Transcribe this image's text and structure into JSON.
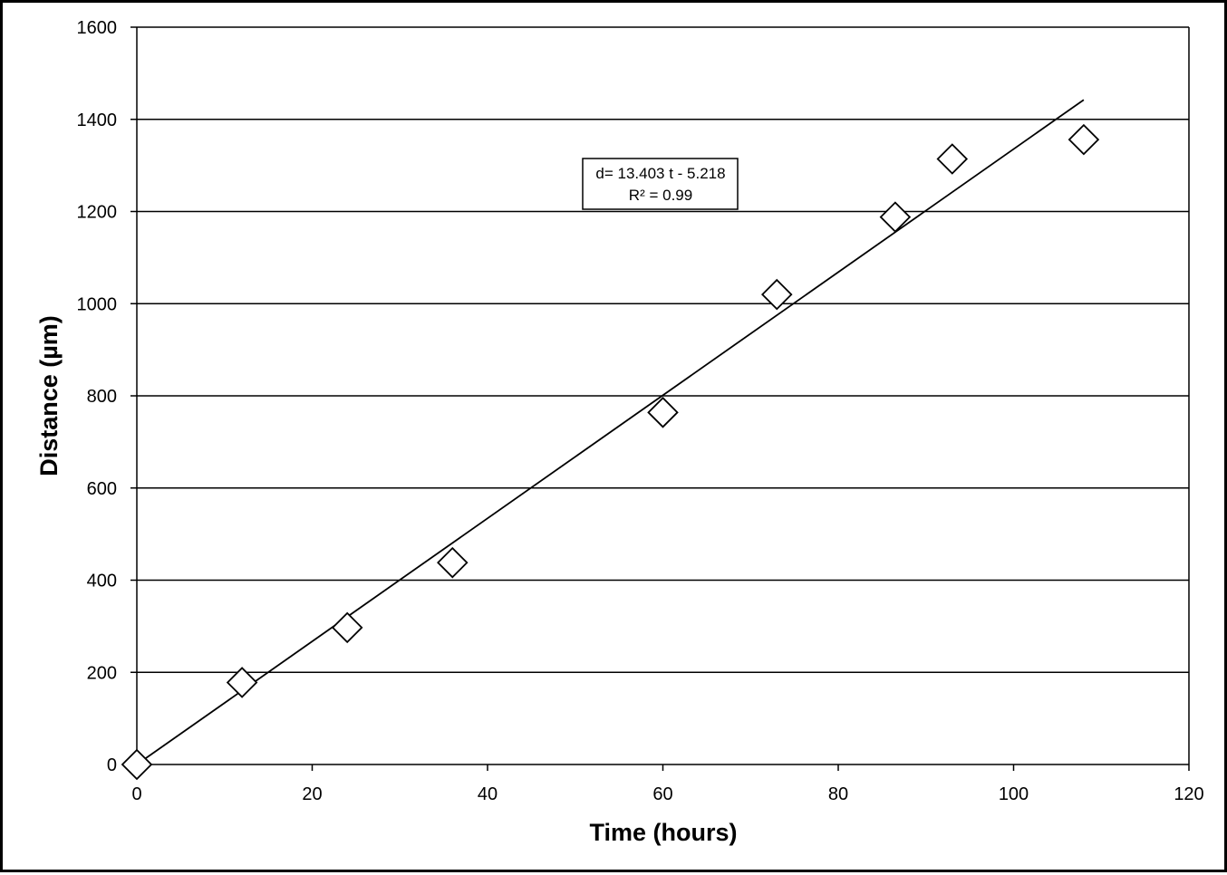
{
  "chart_data": {
    "type": "scatter",
    "xlabel": "Time (hours)",
    "ylabel": "Distance (µm)",
    "xlim": [
      0,
      120
    ],
    "ylim": [
      0,
      1600
    ],
    "xticks": [
      0,
      20,
      40,
      60,
      80,
      100,
      120
    ],
    "yticks": [
      0,
      200,
      400,
      600,
      800,
      1000,
      1200,
      1400,
      1600
    ],
    "grid": "horizontal",
    "marker": "open-diamond",
    "points": [
      {
        "x": 0,
        "y": 0
      },
      {
        "x": 12,
        "y": 178
      },
      {
        "x": 24,
        "y": 297
      },
      {
        "x": 36,
        "y": 438
      },
      {
        "x": 60,
        "y": 764
      },
      {
        "x": 73,
        "y": 1020
      },
      {
        "x": 86.5,
        "y": 1188
      },
      {
        "x": 93,
        "y": 1314
      },
      {
        "x": 108,
        "y": 1356
      }
    ],
    "trendline": {
      "type": "linear",
      "slope": 13.403,
      "intercept": -5.218,
      "x_range": [
        0,
        108
      ],
      "equation": "d= 13.403 t - 5.218",
      "r_squared": "R² = 0.99"
    }
  }
}
